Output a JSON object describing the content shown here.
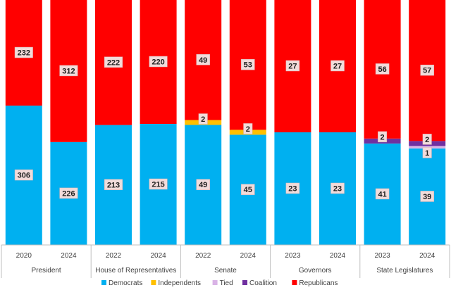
{
  "chart_data": {
    "type": "bar",
    "stacked": true,
    "normalized_100_percent": true,
    "groups": [
      {
        "label": "President",
        "bars": [
          "2020",
          "2024"
        ]
      },
      {
        "label": "House of Representatives",
        "bars": [
          "2022",
          "2024"
        ]
      },
      {
        "label": "Senate",
        "bars": [
          "2022",
          "2024"
        ]
      },
      {
        "label": "Governors",
        "bars": [
          "2023",
          "2024"
        ]
      },
      {
        "label": "State Legislatures",
        "bars": [
          "2023",
          "2024"
        ]
      }
    ],
    "categories": [
      "2020",
      "2024",
      "2022",
      "2024",
      "2022",
      "2024",
      "2023",
      "2024",
      "2023",
      "2024"
    ],
    "series": [
      {
        "name": "Democrats",
        "color": "#00b0f0",
        "values": [
          306,
          226,
          213,
          215,
          49,
          45,
          23,
          23,
          41,
          39
        ]
      },
      {
        "name": "Independents",
        "color": "#ffc000",
        "values": [
          0,
          0,
          0,
          0,
          2,
          2,
          0,
          0,
          0,
          0
        ]
      },
      {
        "name": "Tied",
        "color": "#d9b3e6",
        "values": [
          0,
          0,
          0,
          0,
          0,
          0,
          0,
          0,
          0,
          1
        ]
      },
      {
        "name": "Coalition",
        "color": "#7030a0",
        "values": [
          0,
          0,
          0,
          0,
          0,
          0,
          0,
          0,
          2,
          2
        ]
      },
      {
        "name": "Republicans",
        "color": "#ff0000",
        "values": [
          232,
          312,
          222,
          220,
          49,
          53,
          27,
          27,
          56,
          57
        ]
      }
    ],
    "legend_position": "bottom",
    "grid": false
  }
}
